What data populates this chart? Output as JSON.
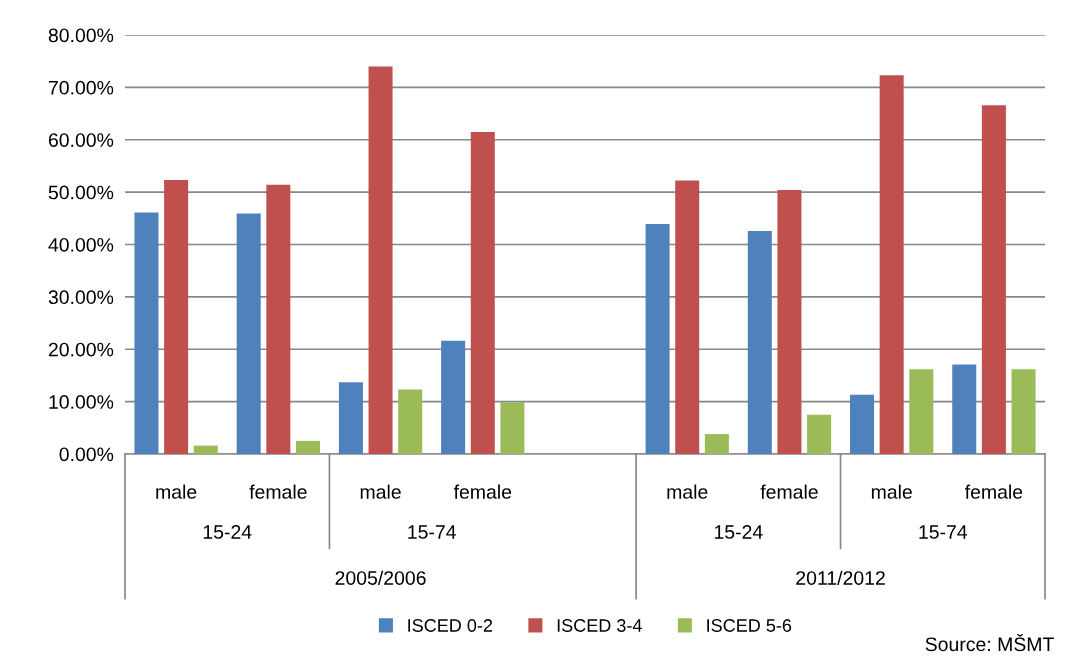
{
  "chart_data": {
    "type": "bar",
    "categories": [
      "male",
      "female",
      "male",
      "female",
      null,
      "male",
      "female",
      "male",
      "female"
    ],
    "series": [
      {
        "name": "ISCED 0-2",
        "color": "#4f81bd",
        "values": [
          46.1,
          45.9,
          13.7,
          21.6,
          null,
          43.9,
          42.6,
          11.3,
          17.1
        ]
      },
      {
        "name": "ISCED 3-4",
        "color": "#c0504d",
        "values": [
          52.3,
          51.4,
          74.0,
          61.5,
          null,
          52.2,
          50.4,
          72.3,
          66.6
        ]
      },
      {
        "name": "ISCED 5-6",
        "color": "#9bbb59",
        "values": [
          1.6,
          2.5,
          12.3,
          9.9,
          null,
          3.8,
          7.5,
          16.2,
          16.2
        ]
      }
    ],
    "ylim": [
      0,
      80
    ],
    "yticks": [
      {
        "value": 0,
        "label": "0.00%"
      },
      {
        "value": 10,
        "label": "10.00%"
      },
      {
        "value": 20,
        "label": "20.00%"
      },
      {
        "value": 30,
        "label": "30.00%"
      },
      {
        "value": 40,
        "label": "40.00%"
      },
      {
        "value": 50,
        "label": "50.00%"
      },
      {
        "value": 60,
        "label": "60.00%"
      },
      {
        "value": 70,
        "label": "70.00%"
      },
      {
        "value": 80,
        "label": "80.00%"
      }
    ],
    "grid": "y",
    "legend": "bottom",
    "annotations": [
      "15-24",
      "15-74",
      "15-24",
      "15-74",
      "2005/2006",
      "2011/2012",
      "Source: MŠMT"
    ]
  }
}
